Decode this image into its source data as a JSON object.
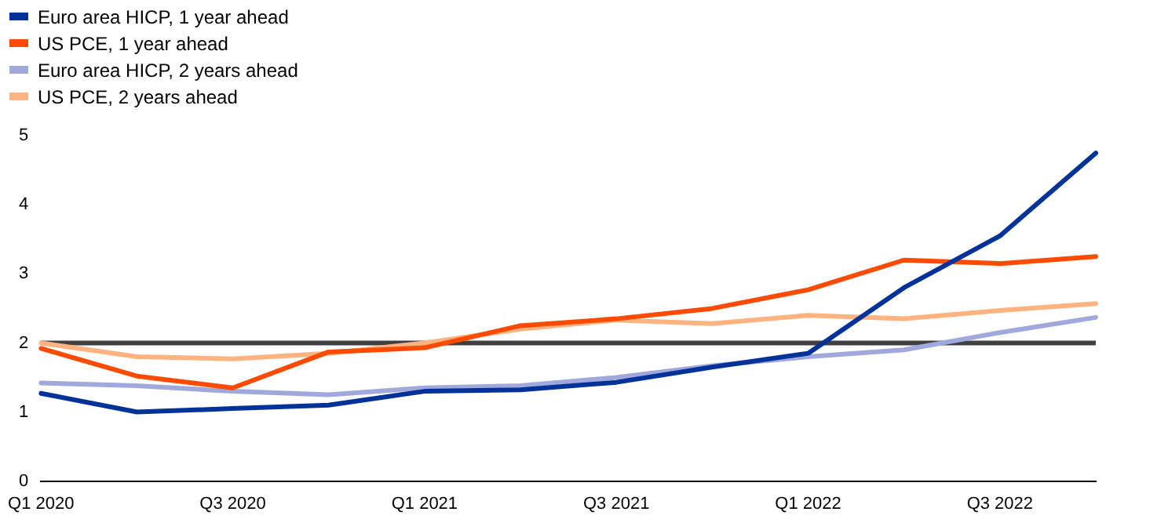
{
  "chart_data": {
    "type": "line",
    "categories": [
      "Q1 2020",
      null,
      "Q3 2020",
      null,
      "Q1 2021",
      null,
      "Q3 2021",
      null,
      "Q1 2022",
      null,
      "Q3 2022",
      null
    ],
    "series": [
      {
        "name": "Euro area HICP, 1 year ahead",
        "color": "#003299",
        "values": [
          1.27,
          1.0,
          1.05,
          1.1,
          1.3,
          1.32,
          1.43,
          1.65,
          1.85,
          2.8,
          3.55,
          4.75
        ]
      },
      {
        "name": "US PCE, 1 year ahead",
        "color": "#ff4b00",
        "values": [
          1.92,
          1.52,
          1.35,
          1.87,
          1.93,
          2.25,
          2.35,
          2.5,
          2.77,
          3.2,
          3.15,
          3.25
        ]
      },
      {
        "name": "Euro area HICP, 2 years ahead",
        "color": "#a0a8dc",
        "values": [
          1.42,
          1.38,
          1.3,
          1.25,
          1.35,
          1.38,
          1.5,
          1.67,
          1.8,
          1.9,
          2.15,
          2.37
        ]
      },
      {
        "name": "US PCE, 2 years ahead",
        "color": "#ffb380",
        "values": [
          2.0,
          1.8,
          1.77,
          1.85,
          2.0,
          2.2,
          2.33,
          2.28,
          2.4,
          2.35,
          2.47,
          2.57
        ]
      }
    ],
    "ylim": [
      0,
      5
    ],
    "yticks": [
      0,
      1,
      2,
      3,
      4,
      5
    ],
    "grid": false,
    "legend": "top left",
    "marker": "none",
    "line_style": "solid",
    "ref_lines": [
      {
        "axis": "y",
        "value": 2,
        "color": "#404040"
      }
    ]
  }
}
